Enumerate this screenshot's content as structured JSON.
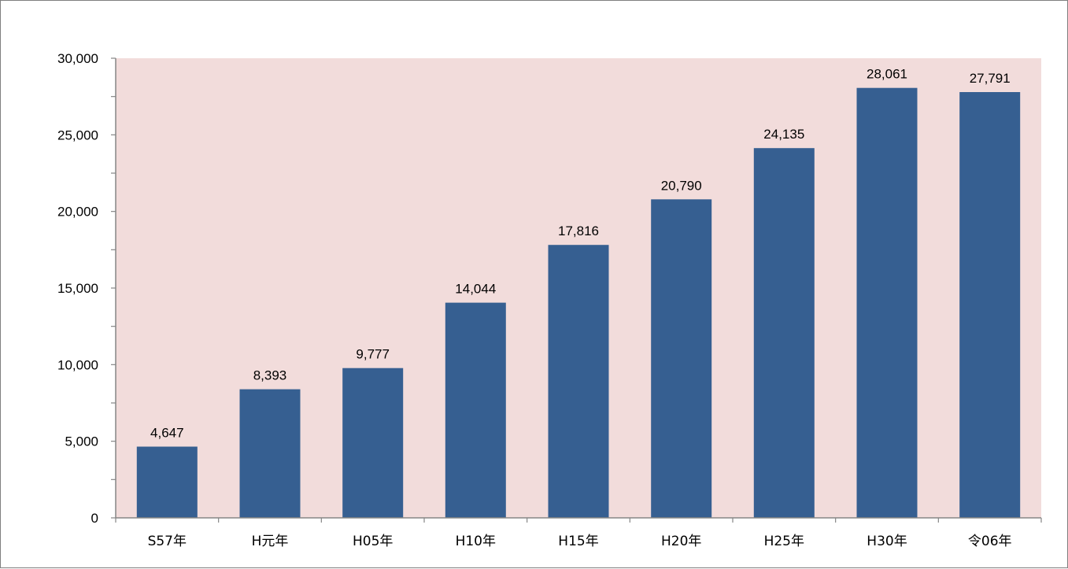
{
  "chart_data": {
    "type": "bar",
    "categories": [
      "S57年",
      "H元年",
      "H05年",
      "H10年",
      "H15年",
      "H20年",
      "H25年",
      "H30年",
      "令06年"
    ],
    "values": [
      4647,
      8393,
      9777,
      14044,
      17816,
      20790,
      24135,
      28061,
      27791
    ],
    "data_labels": [
      "4,647",
      "8,393",
      "9,777",
      "14,044",
      "17,816",
      "20,790",
      "24,135",
      "28,061",
      "27,791"
    ],
    "y_ticks": [
      0,
      5000,
      10000,
      15000,
      20000,
      25000,
      30000
    ],
    "y_tick_labels": [
      "0",
      "5,000",
      "10,000",
      "15,000",
      "20,000",
      "25,000",
      "30,000"
    ],
    "ylim": [
      0,
      30000
    ],
    "title": "",
    "xlabel": "",
    "ylabel": "",
    "grid": false,
    "legend": "none",
    "colors": {
      "bar": "#365f91",
      "plot_background": "#f2dcdb",
      "axis": "#868686"
    }
  }
}
